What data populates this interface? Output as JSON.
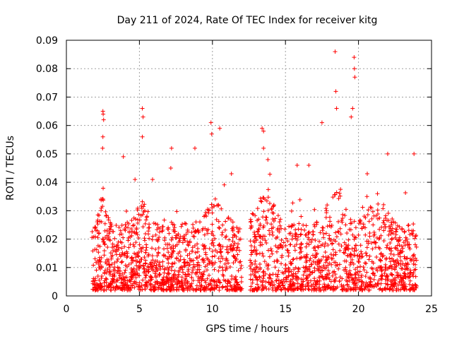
{
  "chart_data": {
    "type": "scatter",
    "title": "Day 211 of 2024, Rate Of TEC Index for receiver kitg",
    "xlabel": "GPS time / hours",
    "ylabel": "ROTI / TECUs",
    "xlim": [
      0,
      25
    ],
    "ylim": [
      0,
      0.09
    ],
    "xticks": [
      0,
      5,
      10,
      15,
      20,
      25
    ],
    "xtick_labels": [
      "0",
      "5",
      "10",
      "15",
      "20",
      "25"
    ],
    "yticks": [
      0,
      0.01,
      0.02,
      0.03,
      0.04,
      0.05,
      0.06,
      0.07,
      0.08,
      0.09
    ],
    "ytick_labels": [
      "0",
      "0.01",
      "0.02",
      "0.03",
      "0.04",
      "0.05",
      "0.06",
      "0.07",
      "0.08",
      "0.09"
    ],
    "grid": true,
    "marker": "+",
    "color": "#ff0000",
    "data_range_hours": [
      1.75,
      24.0
    ],
    "gap_hours": [
      12.05,
      12.55
    ],
    "series": [
      {
        "name": "ROTI",
        "points": [
          [
            2.5,
            0.065
          ],
          [
            2.52,
            0.064
          ],
          [
            2.55,
            0.062
          ],
          [
            2.5,
            0.056
          ],
          [
            2.48,
            0.052
          ],
          [
            5.2,
            0.066
          ],
          [
            5.25,
            0.063
          ],
          [
            5.2,
            0.056
          ],
          [
            7.2,
            0.052
          ],
          [
            7.15,
            0.045
          ],
          [
            9.9,
            0.061
          ],
          [
            9.95,
            0.057
          ],
          [
            10.5,
            0.059
          ],
          [
            13.4,
            0.059
          ],
          [
            13.5,
            0.058
          ],
          [
            13.5,
            0.052
          ],
          [
            18.4,
            0.086
          ],
          [
            18.45,
            0.072
          ],
          [
            18.5,
            0.066
          ],
          [
            19.7,
            0.084
          ],
          [
            19.72,
            0.08
          ],
          [
            19.75,
            0.077
          ],
          [
            19.6,
            0.066
          ],
          [
            19.5,
            0.063
          ],
          [
            17.5,
            0.061
          ],
          [
            22.0,
            0.05
          ],
          [
            23.8,
            0.05
          ],
          [
            3.9,
            0.049
          ],
          [
            4.7,
            0.041
          ],
          [
            5.9,
            0.041
          ],
          [
            8.8,
            0.052
          ],
          [
            11.3,
            0.043
          ],
          [
            15.8,
            0.046
          ],
          [
            16.6,
            0.046
          ],
          [
            20.6,
            0.043
          ],
          [
            21.3,
            0.036
          ]
        ]
      }
    ]
  }
}
